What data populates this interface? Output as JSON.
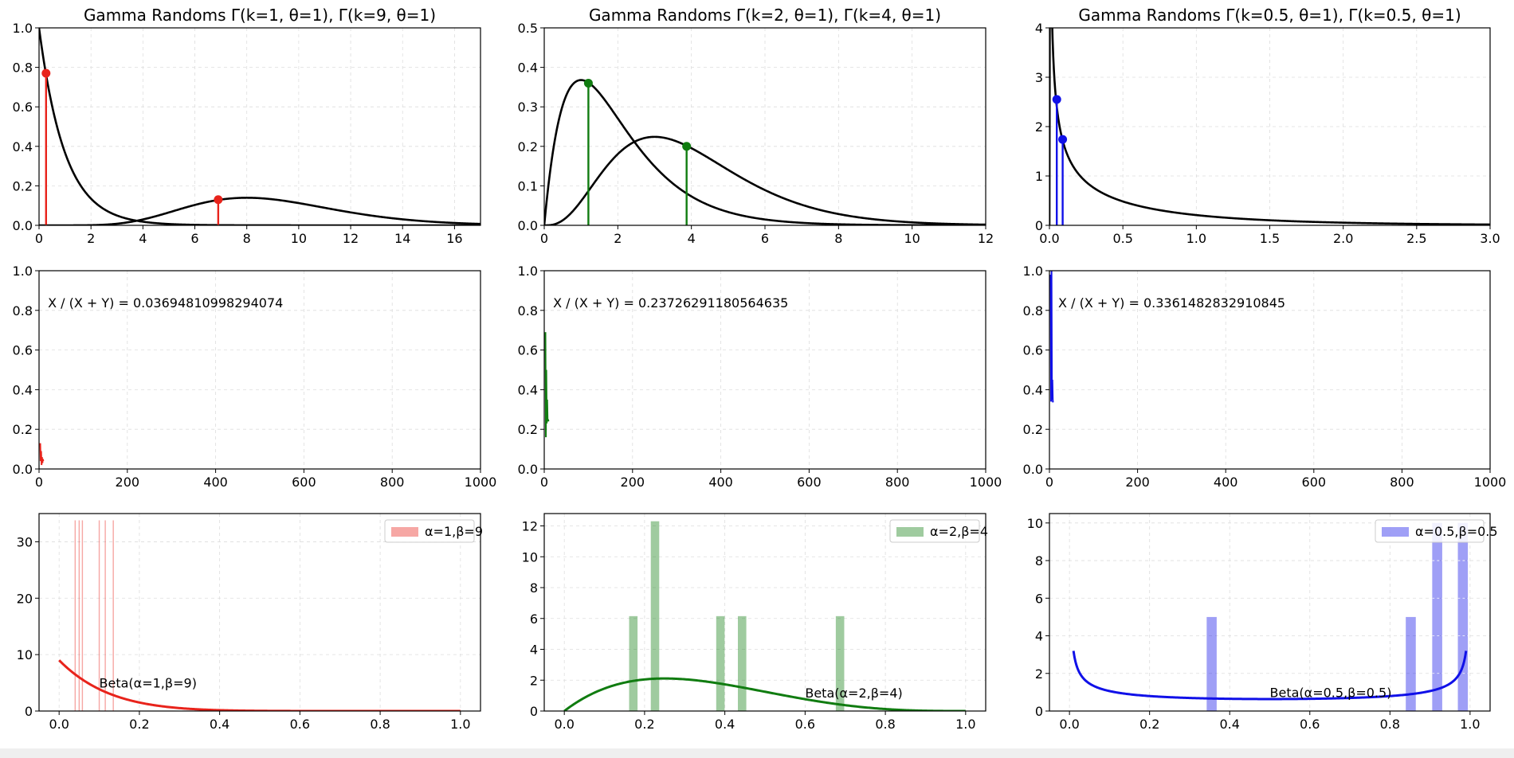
{
  "figure": {
    "strip_color": "#efefef"
  },
  "colors": {
    "red": "#e8231b",
    "green": "#107c10",
    "blue": "#1010e8",
    "black": "#000000",
    "grid": "#dddddd"
  },
  "chart_data": [
    {
      "id": "gamma1",
      "type": "line",
      "title": "Gamma Randoms Γ(k=1, θ=1), Γ(k=9, θ=1)",
      "xlim": [
        0,
        17
      ],
      "ylim": [
        0,
        1.0
      ],
      "xticks": [
        0,
        2,
        4,
        6,
        8,
        10,
        12,
        14,
        16
      ],
      "xtick_labels": [
        "0",
        "2",
        "4",
        "6",
        "8",
        "10",
        "12",
        "14",
        "16"
      ],
      "yticks": [
        0,
        0.2,
        0.4,
        0.6,
        0.8,
        1.0
      ],
      "ytick_labels": [
        "0.0",
        "0.2",
        "0.4",
        "0.6",
        "0.8",
        "1.0"
      ],
      "series": [
        {
          "name": "Gamma(k=1, θ=1) pdf",
          "dist": "gamma",
          "k": 1,
          "theta": 1,
          "color": "black"
        },
        {
          "name": "Gamma(k=9, θ=1) pdf",
          "dist": "gamma",
          "k": 9,
          "theta": 1,
          "color": "black"
        }
      ],
      "stems": [
        {
          "x": 0.27,
          "y": 0.77,
          "color": "red"
        },
        {
          "x": 6.9,
          "y": 0.13,
          "color": "red"
        }
      ]
    },
    {
      "id": "gamma2",
      "type": "line",
      "title": "Gamma Randoms Γ(k=2, θ=1), Γ(k=4, θ=1)",
      "xlim": [
        0,
        12
      ],
      "ylim": [
        0,
        0.5
      ],
      "xticks": [
        0,
        2,
        4,
        6,
        8,
        10,
        12
      ],
      "xtick_labels": [
        "0",
        "2",
        "4",
        "6",
        "8",
        "10",
        "12"
      ],
      "yticks": [
        0,
        0.1,
        0.2,
        0.3,
        0.4,
        0.5
      ],
      "ytick_labels": [
        "0.0",
        "0.1",
        "0.2",
        "0.3",
        "0.4",
        "0.5"
      ],
      "series": [
        {
          "name": "Gamma(k=2, θ=1) pdf",
          "dist": "gamma",
          "k": 2,
          "theta": 1,
          "color": "black"
        },
        {
          "name": "Gamma(k=4, θ=1) pdf",
          "dist": "gamma",
          "k": 4,
          "theta": 1,
          "color": "black"
        }
      ],
      "stems": [
        {
          "x": 1.2,
          "y": 0.36,
          "color": "green"
        },
        {
          "x": 3.87,
          "y": 0.2,
          "color": "green"
        }
      ]
    },
    {
      "id": "gamma3",
      "type": "line",
      "title": "Gamma Randoms Γ(k=0.5, θ=1), Γ(k=0.5, θ=1)",
      "xlim": [
        0,
        3.0
      ],
      "ylim": [
        0,
        4
      ],
      "xticks": [
        0,
        0.5,
        1.0,
        1.5,
        2.0,
        2.5,
        3.0
      ],
      "xtick_labels": [
        "0.0",
        "0.5",
        "1.0",
        "1.5",
        "2.0",
        "2.5",
        "3.0"
      ],
      "yticks": [
        0,
        1,
        2,
        3,
        4
      ],
      "ytick_labels": [
        "0",
        "1",
        "2",
        "3",
        "4"
      ],
      "series": [
        {
          "name": "Gamma(k=0.5, θ=1) pdf",
          "dist": "gamma",
          "k": 0.5,
          "theta": 1,
          "color": "black"
        }
      ],
      "stems": [
        {
          "x": 0.05,
          "y": 2.55,
          "color": "blue"
        },
        {
          "x": 0.09,
          "y": 1.74,
          "color": "blue"
        }
      ]
    },
    {
      "id": "ratio1",
      "type": "line",
      "title": "",
      "xlim": [
        0,
        1000
      ],
      "ylim": [
        0,
        1.0
      ],
      "xticks": [
        0,
        200,
        400,
        600,
        800,
        1000
      ],
      "xtick_labels": [
        "0",
        "200",
        "400",
        "600",
        "800",
        "1000"
      ],
      "yticks": [
        0,
        0.2,
        0.4,
        0.6,
        0.8,
        1.0
      ],
      "ytick_labels": [
        "0.0",
        "0.2",
        "0.4",
        "0.6",
        "0.8",
        "1.0"
      ],
      "annotation": {
        "text": "X / (X + Y) = 0.03694810998294074",
        "x": 20,
        "y": 0.84
      },
      "trace": {
        "color": "red",
        "points": [
          [
            0,
            0.13
          ],
          [
            1,
            0.04
          ],
          [
            2,
            0.09
          ],
          [
            3,
            0.02
          ],
          [
            4,
            0.06
          ],
          [
            5,
            0.03
          ],
          [
            6,
            0.05
          ],
          [
            7,
            0.04
          ]
        ]
      }
    },
    {
      "id": "ratio2",
      "type": "line",
      "title": "",
      "xlim": [
        0,
        1000
      ],
      "ylim": [
        0,
        1.0
      ],
      "xticks": [
        0,
        200,
        400,
        600,
        800,
        1000
      ],
      "xtick_labels": [
        "0",
        "200",
        "400",
        "600",
        "800",
        "1000"
      ],
      "yticks": [
        0,
        0.2,
        0.4,
        0.6,
        0.8,
        1.0
      ],
      "ytick_labels": [
        "0.0",
        "0.2",
        "0.4",
        "0.6",
        "0.8",
        "1.0"
      ],
      "annotation": {
        "text": "X / (X + Y) = 0.23726291180564635",
        "x": 20,
        "y": 0.84
      },
      "trace": {
        "color": "green",
        "points": [
          [
            0,
            0.69
          ],
          [
            1,
            0.16
          ],
          [
            2,
            0.5
          ],
          [
            3,
            0.23
          ],
          [
            4,
            0.35
          ],
          [
            5,
            0.24
          ],
          [
            6,
            0.25
          ],
          [
            7,
            0.24
          ]
        ]
      }
    },
    {
      "id": "ratio3",
      "type": "line",
      "title": "",
      "xlim": [
        0,
        1000
      ],
      "ylim": [
        0,
        1.0
      ],
      "xticks": [
        0,
        200,
        400,
        600,
        800,
        1000
      ],
      "xtick_labels": [
        "0",
        "200",
        "400",
        "600",
        "800",
        "1000"
      ],
      "yticks": [
        0,
        0.2,
        0.4,
        0.6,
        0.8,
        1.0
      ],
      "ytick_labels": [
        "0.0",
        "0.2",
        "0.4",
        "0.6",
        "0.8",
        "1.0"
      ],
      "annotation": {
        "text": "X / (X + Y) = 0.3361482832910845",
        "x": 20,
        "y": 0.84
      },
      "trace": {
        "color": "blue",
        "points": [
          [
            0,
            0.98
          ],
          [
            1,
            0.34
          ],
          [
            2,
            1.0
          ],
          [
            3,
            0.35
          ],
          [
            4,
            0.45
          ],
          [
            5,
            0.34
          ],
          [
            6,
            0.34
          ],
          [
            7,
            0.34
          ]
        ]
      }
    },
    {
      "id": "beta1",
      "type": "bar",
      "title": "",
      "xlim": [
        -0.05,
        1.05
      ],
      "ylim": [
        0,
        35
      ],
      "xticks": [
        0,
        0.2,
        0.4,
        0.6,
        0.8,
        1.0
      ],
      "xtick_labels": [
        "0.0",
        "0.2",
        "0.4",
        "0.6",
        "0.8",
        "1.0"
      ],
      "yticks": [
        0,
        10,
        20,
        30
      ],
      "ytick_labels": [
        "0",
        "10",
        "20",
        "30"
      ],
      "hist": {
        "color": "red",
        "alpha": 0.4,
        "width": 0.0028,
        "bars": [
          {
            "x": 0.04,
            "h": 33.8
          },
          {
            "x": 0.05,
            "h": 33.8
          },
          {
            "x": 0.058,
            "h": 33.8
          },
          {
            "x": 0.1,
            "h": 33.8
          },
          {
            "x": 0.115,
            "h": 33.8
          },
          {
            "x": 0.135,
            "h": 33.8
          }
        ]
      },
      "pdf": {
        "dist": "beta",
        "a": 1,
        "b": 9,
        "color": "red",
        "xmin": 0.0,
        "xmax": 1.0
      },
      "legend": {
        "label": "α=1,β=9",
        "position": "upper right"
      },
      "annotation": {
        "text": "Beta(α=1,β=9)",
        "x": 0.1,
        "y": 5.0
      }
    },
    {
      "id": "beta2",
      "type": "bar",
      "title": "",
      "xlim": [
        -0.05,
        1.05
      ],
      "ylim": [
        0,
        12.8
      ],
      "xticks": [
        0,
        0.2,
        0.4,
        0.6,
        0.8,
        1.0
      ],
      "xtick_labels": [
        "0.0",
        "0.2",
        "0.4",
        "0.6",
        "0.8",
        "1.0"
      ],
      "yticks": [
        0,
        2,
        4,
        6,
        8,
        10,
        12
      ],
      "ytick_labels": [
        "0",
        "2",
        "4",
        "6",
        "8",
        "10",
        "12"
      ],
      "hist": {
        "color": "green",
        "alpha": 0.4,
        "width": 0.021,
        "bars": [
          {
            "x": 0.172,
            "h": 6.15
          },
          {
            "x": 0.226,
            "h": 12.3
          },
          {
            "x": 0.389,
            "h": 6.15
          },
          {
            "x": 0.443,
            "h": 6.15
          },
          {
            "x": 0.687,
            "h": 6.15
          }
        ]
      },
      "pdf": {
        "dist": "beta",
        "a": 2,
        "b": 4,
        "color": "green",
        "xmin": 0.0,
        "xmax": 1.0
      },
      "legend": {
        "label": "α=2,β=4",
        "position": "upper right"
      },
      "annotation": {
        "text": "Beta(α=2,β=4)",
        "x": 0.6,
        "y": 1.2
      }
    },
    {
      "id": "beta3",
      "type": "bar",
      "title": "",
      "xlim": [
        -0.05,
        1.05
      ],
      "ylim": [
        0,
        10.5
      ],
      "xticks": [
        0,
        0.2,
        0.4,
        0.6,
        0.8,
        1.0
      ],
      "xtick_labels": [
        "0.0",
        "0.2",
        "0.4",
        "0.6",
        "0.8",
        "1.0"
      ],
      "yticks": [
        0,
        2,
        4,
        6,
        8,
        10
      ],
      "ytick_labels": [
        "0",
        "2",
        "4",
        "6",
        "8",
        "10"
      ],
      "hist": {
        "color": "blue",
        "alpha": 0.4,
        "width": 0.025,
        "bars": [
          {
            "x": 0.355,
            "h": 5.0
          },
          {
            "x": 0.852,
            "h": 5.0
          },
          {
            "x": 0.918,
            "h": 10.0
          },
          {
            "x": 0.982,
            "h": 10.0
          }
        ]
      },
      "pdf": {
        "dist": "beta",
        "a": 0.5,
        "b": 0.5,
        "color": "blue",
        "xmin": 0.01,
        "xmax": 0.99
      },
      "legend": {
        "label": "α=0.5,β=0.5",
        "position": "upper right"
      },
      "annotation": {
        "text": "Beta(α=0.5,β=0.5)",
        "x": 0.5,
        "y": 1.0
      }
    }
  ]
}
